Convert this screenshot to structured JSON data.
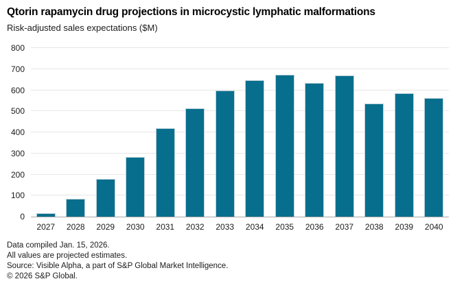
{
  "header": {
    "title": "Qtorin rapamycin drug projections in microcystic lymphatic malformations",
    "subtitle": "Risk-adjusted sales expectations ($M)"
  },
  "chart_data": {
    "type": "bar",
    "title": "Qtorin rapamycin drug projections in microcystic lymphatic malformations",
    "subtitle": "Risk-adjusted sales expectations ($M)",
    "xlabel": "",
    "ylabel": "Risk-adjusted sales expectations ($M)",
    "categories": [
      "2027",
      "2028",
      "2029",
      "2030",
      "2031",
      "2032",
      "2033",
      "2034",
      "2035",
      "2036",
      "2037",
      "2038",
      "2039",
      "2040"
    ],
    "values": [
      15,
      85,
      180,
      283,
      418,
      515,
      600,
      648,
      674,
      635,
      670,
      537,
      585,
      563
    ],
    "ylim": [
      0,
      800
    ],
    "yticks": [
      0,
      100,
      200,
      300,
      400,
      500,
      600,
      700,
      800
    ],
    "grid": "horizontal",
    "legend": "none",
    "bar_color": "#076f8d",
    "bar_border_color": "#bcd0d8",
    "gridline_color": "#e6e6e6",
    "axis_line_color": "#a6a6a6",
    "text_color": "#1a1a1a"
  },
  "footer": {
    "lines": [
      "Data compiled Jan. 15, 2026.",
      "All values are projected estimates.",
      "Source: Visible Alpha, a part of S&P Global Market Intelligence.",
      "© 2026 S&P Global."
    ]
  }
}
